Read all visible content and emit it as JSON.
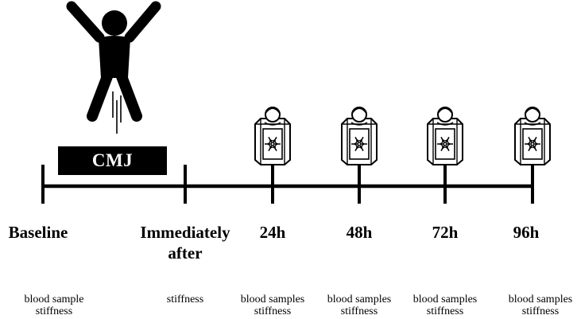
{
  "exercise": {
    "label": "CMJ"
  },
  "timepoints": [
    {
      "id": "baseline",
      "lines": [
        "Baseline"
      ],
      "notes": [
        "blood sample",
        "stiffness"
      ],
      "cryo": false
    },
    {
      "id": "immediately-after",
      "lines": [
        "Immediately",
        "after"
      ],
      "notes": [
        "stiffness"
      ],
      "cryo": false
    },
    {
      "id": "24h",
      "lines": [
        "24h"
      ],
      "notes": [
        "blood samples",
        "stiffness"
      ],
      "cryo": true
    },
    {
      "id": "48h",
      "lines": [
        "48h"
      ],
      "notes": [
        "blood samples",
        "stiffness"
      ],
      "cryo": true
    },
    {
      "id": "72h",
      "lines": [
        "72h"
      ],
      "notes": [
        "blood samples",
        "stiffness"
      ],
      "cryo": true
    },
    {
      "id": "96h",
      "lines": [
        "96h"
      ],
      "notes": [
        "blood samples",
        "stiffness"
      ],
      "cryo": true
    }
  ],
  "icons": {
    "jumper": "jumping-person-icon",
    "cryo": "cryotherapy-chamber-icon",
    "snow": "snowflake-icon"
  }
}
